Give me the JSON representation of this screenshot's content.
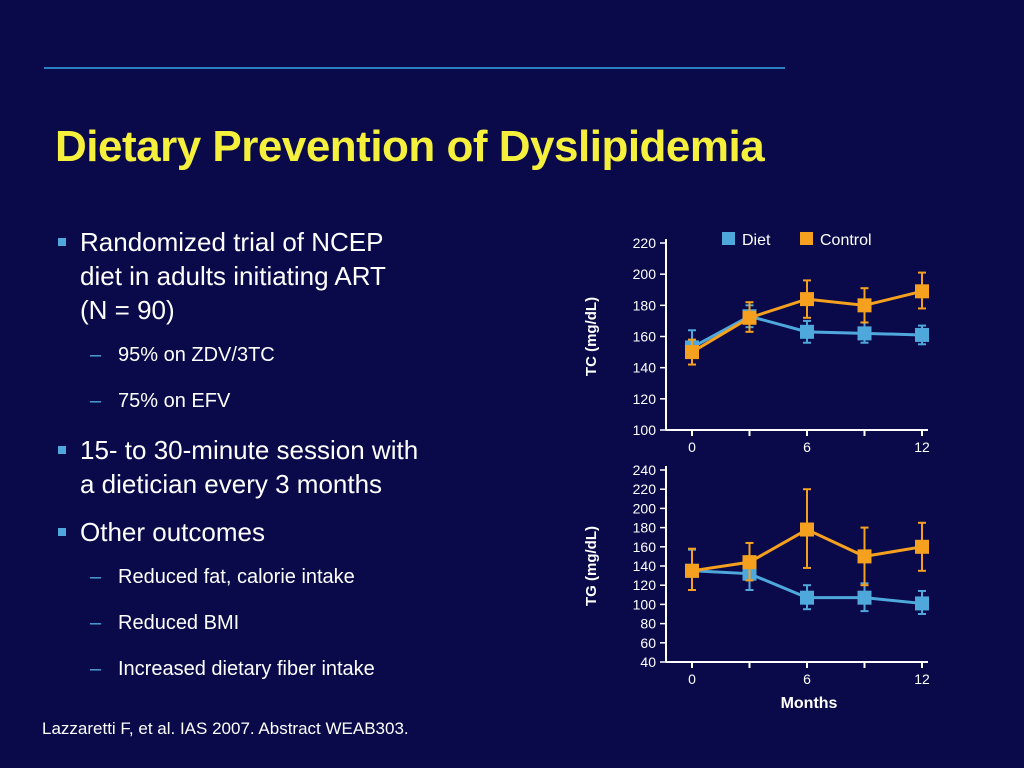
{
  "slide": {
    "title": "Dietary Prevention of Dyslipidemia",
    "bullets": [
      {
        "text": "Randomized trial of NCEP diet in adults initiating ART (N = 90)",
        "lines": [
          "Randomized trial of NCEP",
          "diet in adults initiating ART",
          "(N = 90)"
        ],
        "subs": [
          "95% on ZDV/3TC",
          "75% on EFV"
        ]
      },
      {
        "text": "15- to 30-minute session with a dietician every 3 months",
        "lines": [
          "15- to 30-minute session with",
          "a dietician every 3 months"
        ],
        "subs": []
      },
      {
        "text": "Other outcomes",
        "lines": [
          "Other outcomes"
        ],
        "subs": [
          "Reduced fat, calorie intake",
          "Reduced BMI",
          "Increased dietary fiber intake"
        ]
      }
    ],
    "footer": "Lazzaretti F, et al. IAS 2007. Abstract WEAB303.",
    "sub_dash": "–"
  },
  "colors": {
    "diet": "#4fa8dc",
    "control": "#f5a01e",
    "background": "#0a0a4a",
    "title": "#f5f03c"
  },
  "chart_data": [
    {
      "type": "line",
      "ylabel": "TC (mg/dL)",
      "xlabel": "",
      "xlim": [
        0,
        12
      ],
      "ylim": [
        100,
        220
      ],
      "xticks": [
        0,
        3,
        6,
        9,
        12
      ],
      "xtick_labels": [
        "0",
        "",
        "6",
        "",
        "12"
      ],
      "yticks": [
        100,
        120,
        140,
        160,
        180,
        200,
        220
      ],
      "legend": {
        "placement": "top-right",
        "entries": [
          "Diet",
          "Control"
        ]
      },
      "x": [
        0,
        3,
        6,
        9,
        12
      ],
      "series": [
        {
          "name": "Diet",
          "values": [
            153,
            173,
            163,
            162,
            161
          ],
          "err_low": [
            147,
            166,
            156,
            156,
            155
          ],
          "err_high": [
            164,
            180,
            170,
            169,
            167
          ]
        },
        {
          "name": "Control",
          "values": [
            150,
            172,
            184,
            180,
            189
          ],
          "err_low": [
            142,
            163,
            172,
            169,
            178
          ],
          "err_high": [
            158,
            182,
            196,
            191,
            201
          ]
        }
      ]
    },
    {
      "type": "line",
      "ylabel": "TG (mg/dL)",
      "xlabel": "Months",
      "xlim": [
        0,
        12
      ],
      "ylim": [
        40,
        240
      ],
      "xticks": [
        0,
        3,
        6,
        9,
        12
      ],
      "xtick_labels": [
        "0",
        "",
        "6",
        "",
        "12"
      ],
      "yticks": [
        40,
        60,
        80,
        100,
        120,
        140,
        160,
        180,
        200,
        220,
        240
      ],
      "x": [
        0,
        3,
        6,
        9,
        12
      ],
      "series": [
        {
          "name": "Diet",
          "values": [
            135,
            132,
            107,
            107,
            101
          ],
          "err_low": [
            115,
            115,
            95,
            93,
            90
          ],
          "err_high": [
            157,
            150,
            120,
            122,
            114
          ]
        },
        {
          "name": "Control",
          "values": [
            135,
            144,
            178,
            150,
            160
          ],
          "err_low": [
            115,
            125,
            138,
            120,
            135
          ],
          "err_high": [
            158,
            164,
            220,
            180,
            185
          ]
        }
      ]
    }
  ]
}
